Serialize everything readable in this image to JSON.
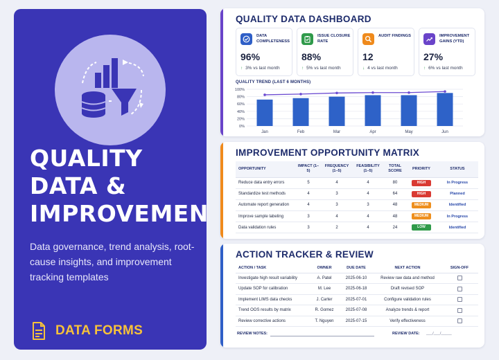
{
  "hero": {
    "title": "QUALITY DATA & IMPROVEMENT",
    "subtitle": "Data governance, trend analysis, root-cause insights, and improvement tracking templates",
    "footer_label": "DATA FORMS",
    "icon": "data-funnel-chart-illustration",
    "footer_icon": "document-icon"
  },
  "dashboard": {
    "title": "QUALITY DATA DASHBOARD",
    "kpis": [
      {
        "label": "DATA COMPLETENESS",
        "value": "96%",
        "arrow": "↑",
        "delta": "3%",
        "delta_text": "vs last month",
        "icon": "check-circle-icon",
        "color": "#2f5fc7"
      },
      {
        "label": "ISSUE CLOSURE RATE",
        "value": "88%",
        "arrow": "↑",
        "delta": "5%",
        "delta_text": "vs last month",
        "icon": "clipboard-check-icon",
        "color": "#2f9a4a"
      },
      {
        "label": "AUDIT FINDINGS",
        "value": "12",
        "arrow": "↓",
        "delta": "4",
        "delta_text": "vs last month",
        "icon": "magnifier-icon",
        "color": "#ef8a1c"
      },
      {
        "label": "IMPROVEMENT GAINS (YTD)",
        "value": "27%",
        "arrow": "↑",
        "delta": "6%",
        "delta_text": "vs last month",
        "icon": "trend-up-icon",
        "color": "#6a44c9"
      }
    ],
    "trend_title": "QUALITY TREND (LAST 6 MONTHS)"
  },
  "chart_data": {
    "type": "bar",
    "title": "QUALITY TREND (LAST 6 MONTHS)",
    "categories": [
      "Jan",
      "Feb",
      "Mar",
      "Apr",
      "May",
      "Jun"
    ],
    "series": [
      {
        "type": "bar",
        "values": [
          72,
          76,
          80,
          84,
          84,
          90
        ]
      },
      {
        "type": "line",
        "values": [
          85,
          87,
          90,
          91,
          91,
          94
        ]
      }
    ],
    "yticks": [
      "0%",
      "20%",
      "40%",
      "60%",
      "80%",
      "100%"
    ],
    "ylim": [
      0,
      100
    ],
    "grid": true,
    "bar_color": "#2e62c8",
    "line_color": "#6b4ad1"
  },
  "matrix": {
    "title": "IMPROVEMENT OPPORTUNITY MATRIX",
    "headers": [
      "OPPORTUNITY",
      "IMPACT (1–5)",
      "FREQUENCY (1–5)",
      "FEASIBILITY (1–5)",
      "TOTAL SCORE",
      "PRIORITY",
      "STATUS"
    ],
    "rows": [
      {
        "name": "Reduce data entry errors",
        "impact": "5",
        "frequency": "4",
        "feasibility": "4",
        "score": "80",
        "priority": "HIGH",
        "priority_color": "#d93a33",
        "status": "In Progress"
      },
      {
        "name": "Standardize test methods",
        "impact": "4",
        "frequency": "3",
        "feasibility": "4",
        "score": "64",
        "priority": "HIGH",
        "priority_color": "#d93a33",
        "status": "Planned"
      },
      {
        "name": "Automate report generation",
        "impact": "4",
        "frequency": "3",
        "feasibility": "3",
        "score": "48",
        "priority": "MEDIUM",
        "priority_color": "#ee8f1e",
        "status": "Identified"
      },
      {
        "name": "Improve sample labeling",
        "impact": "3",
        "frequency": "4",
        "feasibility": "4",
        "score": "48",
        "priority": "MEDIUM",
        "priority_color": "#ee8f1e",
        "status": "In Progress"
      },
      {
        "name": "Data validation rules",
        "impact": "3",
        "frequency": "2",
        "feasibility": "4",
        "score": "24",
        "priority": "LOW",
        "priority_color": "#2f9a4a",
        "status": "Identified"
      }
    ]
  },
  "tracker": {
    "title": "ACTION TRACKER & REVIEW",
    "headers": [
      "ACTION / TASK",
      "OWNER",
      "DUE DATE",
      "NEXT ACTION",
      "SIGN-OFF"
    ],
    "rows": [
      {
        "task": "Investigate high result variability",
        "owner": "A. Patel",
        "due": "2025-06-10",
        "next": "Review raw data and method"
      },
      {
        "task": "Update SOP for calibration",
        "owner": "M. Lee",
        "due": "2025-06-18",
        "next": "Draft revised SOP"
      },
      {
        "task": "Implement LIMS data checks",
        "owner": "J. Carter",
        "due": "2025-07-01",
        "next": "Configure validation rules"
      },
      {
        "task": "Trend OOS results by matrix",
        "owner": "R. Gomez",
        "due": "2025-07-08",
        "next": "Analyze trends & report"
      },
      {
        "task": "Review corrective actions",
        "owner": "T. Nguyen",
        "due": "2025-07-15",
        "next": "Verify effectiveness"
      }
    ],
    "review_notes_label": "REVIEW NOTES:",
    "review_date_label": "REVIEW DATE:",
    "review_date_value": "___/___/_____"
  },
  "colors": {
    "hero_bg": "#3a35b5",
    "accent_purple": "#6a44c9",
    "accent_orange": "#ef8a1c",
    "accent_blue": "#2f5fc7",
    "title_navy": "#1d2b6b",
    "gold": "#f7c23a"
  }
}
